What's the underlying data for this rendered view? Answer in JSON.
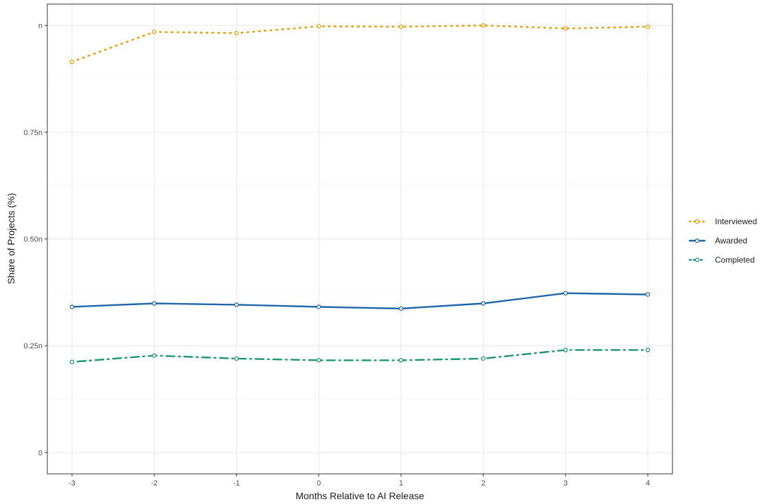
{
  "chart_data": {
    "type": "line",
    "title": "",
    "xlabel": "Months Relative to AI Release",
    "ylabel": "Share of Projects (%)",
    "x": [
      -3,
      -2,
      -1,
      0,
      1,
      2,
      3,
      4
    ],
    "xlim": [
      -3.3,
      4.3
    ],
    "ylim": [
      -0.05,
      1.05
    ],
    "xticks": [
      {
        "value": -3,
        "label": "-3"
      },
      {
        "value": -2,
        "label": "-2"
      },
      {
        "value": -1,
        "label": "-1"
      },
      {
        "value": 0,
        "label": "0"
      },
      {
        "value": 1,
        "label": "1"
      },
      {
        "value": 2,
        "label": "2"
      },
      {
        "value": 3,
        "label": "3"
      },
      {
        "value": 4,
        "label": "4"
      }
    ],
    "yticks": [
      {
        "value": 0,
        "label": "0"
      },
      {
        "value": 0.25,
        "label": "0.25n"
      },
      {
        "value": 0.5,
        "label": "0.50n"
      },
      {
        "value": 0.75,
        "label": "0.75n"
      },
      {
        "value": 1,
        "label": "n"
      }
    ],
    "grid": true,
    "legend_position": "right",
    "series": [
      {
        "name": "Interviewed",
        "color": "#E69F00",
        "dash": "dotted",
        "values": [
          0.915,
          0.985,
          0.982,
          0.998,
          0.997,
          1.0,
          0.993,
          0.997
        ]
      },
      {
        "name": "Awarded",
        "color": "#1F66A9",
        "dash": "solid",
        "values": [
          0.341,
          0.349,
          0.346,
          0.341,
          0.337,
          0.349,
          0.373,
          0.37
        ]
      },
      {
        "name": "Completed",
        "color": "#17966E",
        "dash": "dotdash",
        "values": [
          0.212,
          0.227,
          0.22,
          0.216,
          0.216,
          0.22,
          0.24,
          0.24
        ]
      }
    ]
  }
}
